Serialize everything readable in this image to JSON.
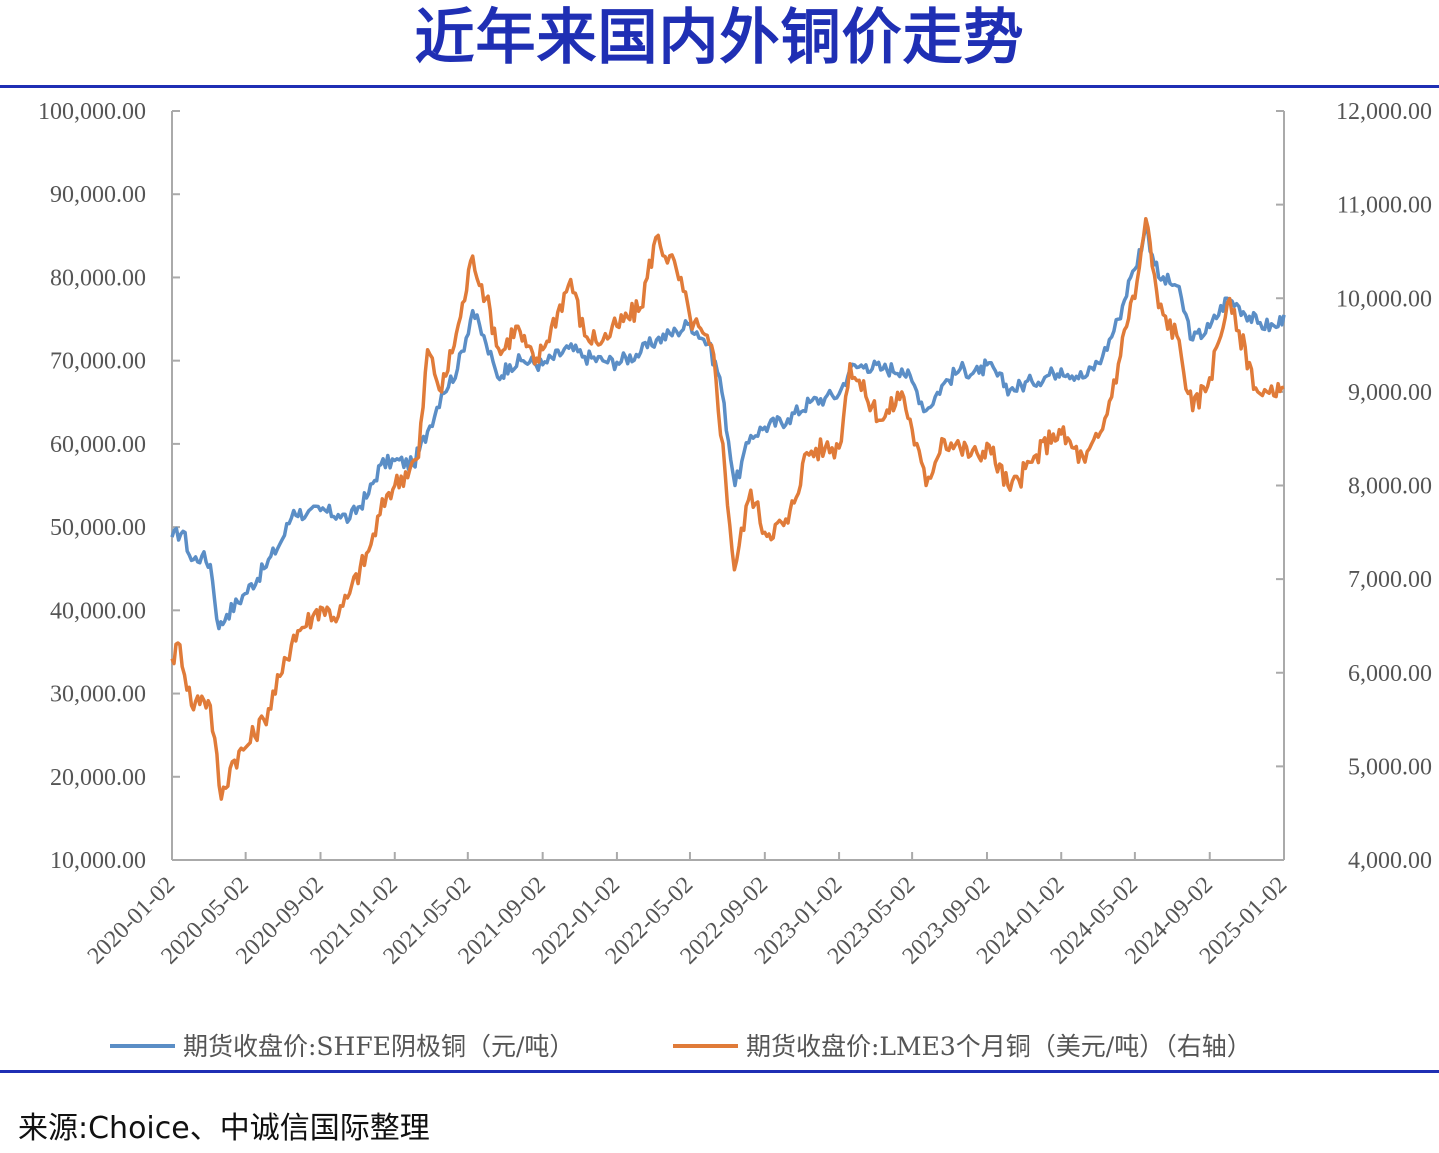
{
  "title": "近年来国内外铜价走势",
  "source": "来源:Choice、中诚信国际整理",
  "colors": {
    "accent": "#1f2fb4",
    "shfe": "#5b8ec6",
    "lme": "#e07b39",
    "axis": "#aaaaaa",
    "text": "#555555"
  },
  "chart_data": {
    "type": "line",
    "title": "",
    "xlabel": "",
    "ylabel": "",
    "grid": false,
    "legend": "bottom",
    "x_ticks": [
      "2020-01-02",
      "2020-05-02",
      "2020-09-02",
      "2021-01-02",
      "2021-05-02",
      "2021-09-02",
      "2022-01-02",
      "2022-05-02",
      "2022-09-02",
      "2023-01-02",
      "2023-05-02",
      "2023-09-02",
      "2024-01-02",
      "2024-05-02",
      "2024-09-02",
      "2025-01-02"
    ],
    "left_axis": {
      "ylim": [
        10000,
        100000
      ],
      "ticks": [
        10000,
        20000,
        30000,
        40000,
        50000,
        60000,
        70000,
        80000,
        90000,
        100000
      ],
      "tick_labels": [
        "10,000.00",
        "20,000.00",
        "30,000.00",
        "40,000.00",
        "50,000.00",
        "60,000.00",
        "70,000.00",
        "80,000.00",
        "90,000.00",
        "100,000.00"
      ]
    },
    "right_axis": {
      "ylim": [
        4000,
        12000
      ],
      "ticks": [
        4000,
        5000,
        6000,
        7000,
        8000,
        9000,
        10000,
        11000,
        12000
      ],
      "tick_labels": [
        "4,000.00",
        "5,000.00",
        "6,000.00",
        "7,000.00",
        "8,000.00",
        "9,000.00",
        "10,000.00",
        "11,000.00",
        "12,000.00"
      ]
    },
    "series": [
      {
        "name": "期货收盘价:SHFE阴极铜（元/吨）",
        "axis": "left",
        "color": "#5b8ec6",
        "points": [
          [
            "2020-01-02",
            48800
          ],
          [
            "2020-01-20",
            49500
          ],
          [
            "2020-02-03",
            46000
          ],
          [
            "2020-02-20",
            46500
          ],
          [
            "2020-03-05",
            45500
          ],
          [
            "2020-03-19",
            37800
          ],
          [
            "2020-04-01",
            39500
          ],
          [
            "2020-05-01",
            42000
          ],
          [
            "2020-06-01",
            45000
          ],
          [
            "2020-07-01",
            48500
          ],
          [
            "2020-07-20",
            52000
          ],
          [
            "2020-08-10",
            51500
          ],
          [
            "2020-09-02",
            52000
          ],
          [
            "2020-10-01",
            51500
          ],
          [
            "2020-10-20",
            51000
          ],
          [
            "2020-11-20",
            54000
          ],
          [
            "2020-12-10",
            57500
          ],
          [
            "2021-01-02",
            58000
          ],
          [
            "2021-02-01",
            57500
          ],
          [
            "2021-02-25",
            61500
          ],
          [
            "2021-03-20",
            66000
          ],
          [
            "2021-04-15",
            69000
          ],
          [
            "2021-05-10",
            76000
          ],
          [
            "2021-06-01",
            72000
          ],
          [
            "2021-06-20",
            68000
          ],
          [
            "2021-07-10",
            69500
          ],
          [
            "2021-08-01",
            70000
          ],
          [
            "2021-09-02",
            69500
          ],
          [
            "2021-10-15",
            71500
          ],
          [
            "2021-11-10",
            70500
          ],
          [
            "2021-12-10",
            70000
          ],
          [
            "2022-01-02",
            69800
          ],
          [
            "2022-02-10",
            71000
          ],
          [
            "2022-03-08",
            72500
          ],
          [
            "2022-04-10",
            73500
          ],
          [
            "2022-05-02",
            74500
          ],
          [
            "2022-06-01",
            72000
          ],
          [
            "2022-06-20",
            68000
          ],
          [
            "2022-07-15",
            55000
          ],
          [
            "2022-08-10",
            61000
          ],
          [
            "2022-09-02",
            62000
          ],
          [
            "2022-10-10",
            63000
          ],
          [
            "2022-11-15",
            65000
          ],
          [
            "2022-12-10",
            65500
          ],
          [
            "2023-01-02",
            66000
          ],
          [
            "2023-01-20",
            69000
          ],
          [
            "2023-02-15",
            69500
          ],
          [
            "2023-03-15",
            69000
          ],
          [
            "2023-04-15",
            69000
          ],
          [
            "2023-05-02",
            67500
          ],
          [
            "2023-05-25",
            64000
          ],
          [
            "2023-06-20",
            67000
          ],
          [
            "2023-07-20",
            69000
          ],
          [
            "2023-08-20",
            68500
          ],
          [
            "2023-09-02",
            69500
          ],
          [
            "2023-10-10",
            66500
          ],
          [
            "2023-11-15",
            67500
          ],
          [
            "2023-12-20",
            68500
          ],
          [
            "2024-01-02",
            69000
          ],
          [
            "2024-02-10",
            68000
          ],
          [
            "2024-03-10",
            70500
          ],
          [
            "2024-04-05",
            75000
          ],
          [
            "2024-04-25",
            80000
          ],
          [
            "2024-05-02",
            81000
          ],
          [
            "2024-05-20",
            86000
          ],
          [
            "2024-06-10",
            80000
          ],
          [
            "2024-07-10",
            79000
          ],
          [
            "2024-08-05",
            72500
          ],
          [
            "2024-09-02",
            74000
          ],
          [
            "2024-10-01",
            77500
          ],
          [
            "2024-10-20",
            76500
          ],
          [
            "2024-11-20",
            74500
          ],
          [
            "2024-12-20",
            74000
          ],
          [
            "2025-01-02",
            75500
          ]
        ]
      },
      {
        "name": "期货收盘价:LME3个月铜（美元/吨）（右轴）",
        "axis": "right",
        "color": "#e07b39",
        "points": [
          [
            "2020-01-02",
            6150
          ],
          [
            "2020-01-15",
            6300
          ],
          [
            "2020-02-03",
            5650
          ],
          [
            "2020-02-20",
            5750
          ],
          [
            "2020-03-05",
            5650
          ],
          [
            "2020-03-23",
            4650
          ],
          [
            "2020-04-10",
            5050
          ],
          [
            "2020-05-02",
            5200
          ],
          [
            "2020-06-01",
            5500
          ],
          [
            "2020-07-01",
            6000
          ],
          [
            "2020-07-20",
            6400
          ],
          [
            "2020-08-20",
            6600
          ],
          [
            "2020-09-02",
            6700
          ],
          [
            "2020-10-01",
            6600
          ],
          [
            "2020-10-20",
            6850
          ],
          [
            "2020-11-20",
            7300
          ],
          [
            "2020-12-20",
            7900
          ],
          [
            "2021-01-02",
            8000
          ],
          [
            "2021-02-10",
            8300
          ],
          [
            "2021-02-25",
            9450
          ],
          [
            "2021-03-20",
            9000
          ],
          [
            "2021-04-20",
            9800
          ],
          [
            "2021-05-10",
            10450
          ],
          [
            "2021-06-01",
            10000
          ],
          [
            "2021-06-25",
            9400
          ],
          [
            "2021-07-20",
            9700
          ],
          [
            "2021-08-20",
            9300
          ],
          [
            "2021-09-02",
            9450
          ],
          [
            "2021-10-18",
            10200
          ],
          [
            "2021-11-10",
            9600
          ],
          [
            "2021-12-10",
            9550
          ],
          [
            "2022-01-02",
            9700
          ],
          [
            "2022-02-10",
            9900
          ],
          [
            "2022-03-07",
            10650
          ],
          [
            "2022-04-10",
            10300
          ],
          [
            "2022-05-02",
            9800
          ],
          [
            "2022-06-10",
            9400
          ],
          [
            "2022-07-14",
            7100
          ],
          [
            "2022-08-10",
            7950
          ],
          [
            "2022-09-02",
            7500
          ],
          [
            "2022-10-10",
            7600
          ],
          [
            "2022-11-10",
            8350
          ],
          [
            "2022-12-10",
            8400
          ],
          [
            "2023-01-02",
            8400
          ],
          [
            "2023-01-20",
            9300
          ],
          [
            "2023-02-15",
            8950
          ],
          [
            "2023-03-15",
            8700
          ],
          [
            "2023-04-15",
            9000
          ],
          [
            "2023-05-02",
            8600
          ],
          [
            "2023-05-25",
            8000
          ],
          [
            "2023-06-20",
            8500
          ],
          [
            "2023-07-20",
            8400
          ],
          [
            "2023-08-20",
            8300
          ],
          [
            "2023-09-02",
            8450
          ],
          [
            "2023-10-10",
            7950
          ],
          [
            "2023-11-15",
            8250
          ],
          [
            "2023-12-20",
            8550
          ],
          [
            "2024-01-02",
            8550
          ],
          [
            "2024-02-10",
            8250
          ],
          [
            "2024-03-10",
            8600
          ],
          [
            "2024-04-05",
            9300
          ],
          [
            "2024-04-25",
            9950
          ],
          [
            "2024-05-02",
            10000
          ],
          [
            "2024-05-20",
            10850
          ],
          [
            "2024-06-10",
            9900
          ],
          [
            "2024-07-10",
            9600
          ],
          [
            "2024-08-05",
            8800
          ],
          [
            "2024-09-02",
            9150
          ],
          [
            "2024-10-01",
            9950
          ],
          [
            "2024-10-20",
            9650
          ],
          [
            "2024-11-20",
            9000
          ],
          [
            "2024-12-20",
            8950
          ],
          [
            "2025-01-02",
            9050
          ]
        ]
      }
    ]
  }
}
